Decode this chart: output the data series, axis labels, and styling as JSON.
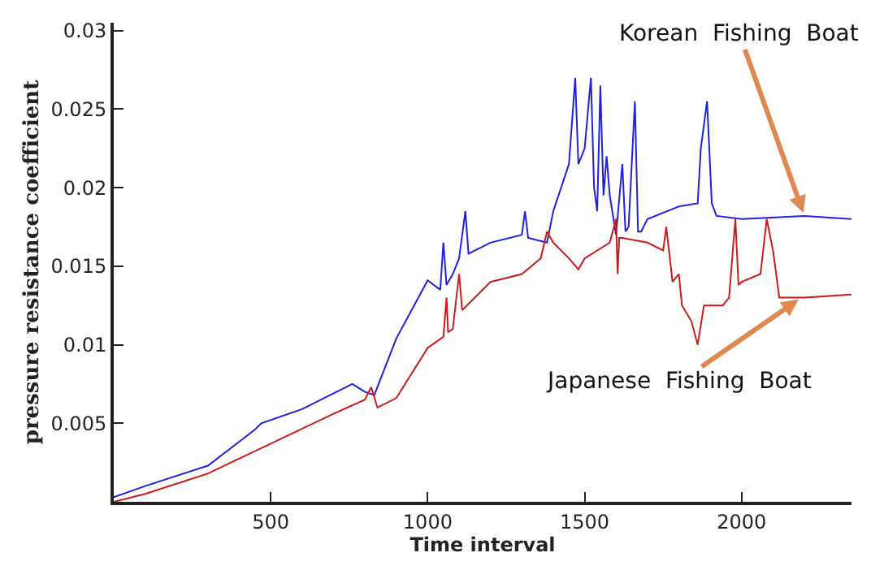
{
  "chart_data": {
    "type": "line",
    "xlabel": "Time interval",
    "ylabel": "pressure resistance coefficient",
    "xlim": [
      0,
      2350
    ],
    "ylim": [
      0,
      0.0305
    ],
    "xticks": [
      500,
      1000,
      1500,
      2000
    ],
    "yticks": [
      {
        "value": 0.005,
        "label": "0.005"
      },
      {
        "value": 0.01,
        "label": "0.01"
      },
      {
        "value": 0.015,
        "label": "0.015"
      },
      {
        "value": 0.02,
        "label": "0.02"
      },
      {
        "value": 0.025,
        "label": "0.025"
      },
      {
        "value": 0.03,
        "label": "0.03"
      }
    ],
    "legend": false,
    "series": [
      {
        "color": "#2020e0",
        "x": [
          0,
          100,
          300,
          450,
          470,
          600,
          760,
          800,
          830,
          900,
          1000,
          1040,
          1050,
          1060,
          1080,
          1100,
          1120,
          1130,
          1200,
          1300,
          1310,
          1320,
          1380,
          1400,
          1450,
          1470,
          1480,
          1500,
          1520,
          1530,
          1540,
          1550,
          1560,
          1570,
          1580,
          1600,
          1620,
          1630,
          1640,
          1660,
          1670,
          1680,
          1700,
          1800,
          1860,
          1870,
          1890,
          1905,
          1920,
          2000,
          2200,
          2350
        ],
        "values": [
          0.0003,
          0.001,
          0.0023,
          0.0046,
          0.005,
          0.0059,
          0.0075,
          0.007,
          0.0068,
          0.0104,
          0.0141,
          0.0135,
          0.0165,
          0.0138,
          0.0145,
          0.0155,
          0.0185,
          0.0158,
          0.0165,
          0.017,
          0.0185,
          0.0168,
          0.0165,
          0.0185,
          0.0215,
          0.027,
          0.0215,
          0.0225,
          0.027,
          0.02,
          0.0185,
          0.0265,
          0.0195,
          0.022,
          0.0195,
          0.017,
          0.0215,
          0.0172,
          0.0175,
          0.0255,
          0.0172,
          0.0172,
          0.018,
          0.0188,
          0.019,
          0.0225,
          0.0255,
          0.019,
          0.0182,
          0.018,
          0.0182,
          0.018
        ]
      },
      {
        "color": "#cc1a1a",
        "x": [
          0,
          100,
          300,
          500,
          700,
          800,
          820,
          840,
          900,
          1000,
          1050,
          1060,
          1065,
          1080,
          1100,
          1110,
          1150,
          1200,
          1300,
          1360,
          1380,
          1400,
          1450,
          1480,
          1500,
          1580,
          1600,
          1605,
          1610,
          1620,
          1700,
          1750,
          1760,
          1780,
          1800,
          1810,
          1840,
          1860,
          1880,
          1940,
          1960,
          1980,
          1990,
          2000,
          2060,
          2080,
          2100,
          2120,
          2200,
          2350
        ],
        "values": [
          0,
          0.0005,
          0.0018,
          0.0037,
          0.0056,
          0.0065,
          0.0073,
          0.006,
          0.0066,
          0.0098,
          0.0105,
          0.013,
          0.0108,
          0.011,
          0.0145,
          0.0122,
          0.013,
          0.014,
          0.0145,
          0.0155,
          0.0172,
          0.0165,
          0.0155,
          0.0148,
          0.0155,
          0.0165,
          0.018,
          0.0145,
          0.0168,
          0.0168,
          0.0165,
          0.016,
          0.0175,
          0.014,
          0.0145,
          0.0125,
          0.0115,
          0.01,
          0.0125,
          0.0125,
          0.013,
          0.018,
          0.0138,
          0.014,
          0.0145,
          0.018,
          0.016,
          0.013,
          0.013,
          0.0132
        ]
      }
    ],
    "annotations": [
      {
        "text": "Korean  Fishing  Boat",
        "x": 2200,
        "y": 0.0182
      },
      {
        "text": "Japanese  Fishing  Boat",
        "x": 2190,
        "y": 0.013
      }
    ]
  }
}
